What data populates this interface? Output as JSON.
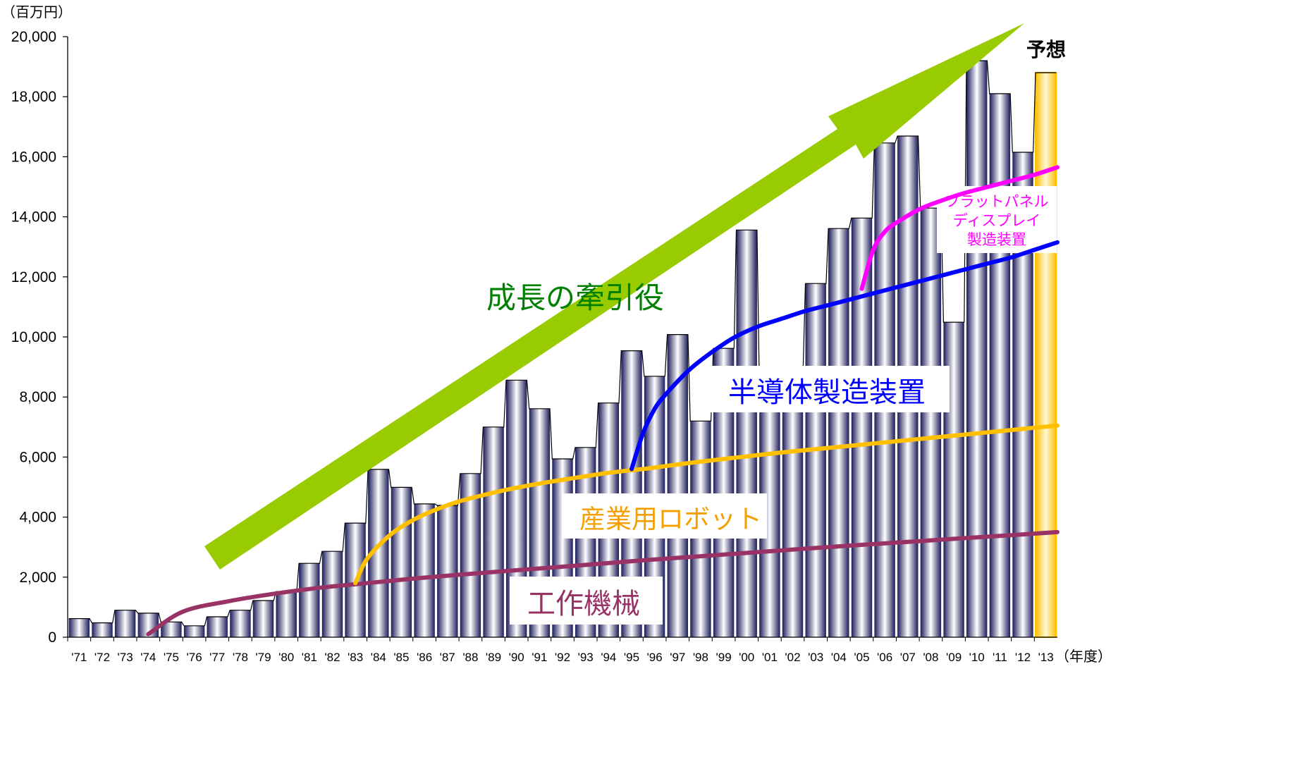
{
  "chart_data": {
    "type": "bar",
    "y_unit": "（百万円）",
    "x_unit": "（年度）",
    "ylim": [
      0,
      20000
    ],
    "y_ticks": [
      "0",
      "2,000",
      "4,000",
      "6,000",
      "8,000",
      "10,000",
      "12,000",
      "14,000",
      "16,000",
      "18,000",
      "20,000"
    ],
    "categories": [
      "'71",
      "'72",
      "'73",
      "'74",
      "'75",
      "'76",
      "'77",
      "'78",
      "'79",
      "'80",
      "'81",
      "'82",
      "'83",
      "'84",
      "'85",
      "'86",
      "'87",
      "'88",
      "'89",
      "'90",
      "'91",
      "'92",
      "'93",
      "'94",
      "'95",
      "'96",
      "'97",
      "'98",
      "'99",
      "'00",
      "'01",
      "'02",
      "'03",
      "'04",
      "'05",
      "'06",
      "'07",
      "'08",
      "'09",
      "'10",
      "'11",
      "'12",
      "'13"
    ],
    "values": [
      620,
      480,
      900,
      800,
      510,
      380,
      680,
      900,
      1220,
      1520,
      2460,
      2860,
      3800,
      5590,
      4990,
      4440,
      4390,
      5450,
      7000,
      8560,
      7610,
      5940,
      6320,
      7800,
      9540,
      8690,
      10080,
      7200,
      9620,
      13560,
      8400,
      8870,
      11780,
      13610,
      13960,
      16460,
      16690,
      14290,
      10490,
      19200,
      18100,
      16150,
      18800
    ],
    "forecast_label": "予想",
    "forecast_category": "'13",
    "trend_lines": [
      {
        "name": "工作機械",
        "color": "#993366",
        "x": [
          3.5,
          5,
          7,
          9,
          11,
          13,
          15,
          17,
          19,
          21,
          23,
          25,
          27,
          29,
          31,
          33,
          35,
          37,
          39,
          41,
          43
        ],
        "y": [
          100,
          850,
          1200,
          1450,
          1650,
          1800,
          1950,
          2080,
          2200,
          2320,
          2440,
          2560,
          2670,
          2780,
          2890,
          3000,
          3100,
          3200,
          3300,
          3400,
          3500
        ]
      },
      {
        "name": "産業用ロボット",
        "color": "#FFC000",
        "x": [
          12.5,
          13,
          14,
          15,
          16,
          17,
          18,
          19,
          20,
          21,
          22,
          23,
          24,
          25,
          27,
          29,
          31,
          33,
          35,
          37,
          39,
          41,
          43
        ],
        "y": [
          1800,
          2600,
          3400,
          3900,
          4250,
          4520,
          4720,
          4900,
          5050,
          5180,
          5300,
          5420,
          5520,
          5600,
          5800,
          5980,
          6150,
          6300,
          6450,
          6600,
          6750,
          6900,
          7050
        ]
      },
      {
        "name": "半導体製造装置",
        "color": "#0000FF",
        "x": [
          24.5,
          25,
          25.5,
          26,
          27,
          28,
          29,
          30,
          31,
          32,
          33,
          34,
          35,
          36,
          37,
          38,
          39,
          40,
          41,
          42,
          43
        ],
        "y": [
          5600,
          6800,
          7600,
          8100,
          8900,
          9500,
          10000,
          10350,
          10600,
          10850,
          11050,
          11250,
          11450,
          11650,
          11850,
          12050,
          12250,
          12450,
          12650,
          12900,
          13150
        ]
      },
      {
        "name": "フラットパネルディスプレイ製造装置",
        "color": "#FF00FF",
        "x": [
          34.5,
          35,
          35.5,
          36,
          37,
          38,
          39,
          40,
          41,
          42,
          43
        ],
        "y": [
          11600,
          12900,
          13500,
          13800,
          14250,
          14550,
          14800,
          15000,
          15200,
          15400,
          15650
        ]
      }
    ],
    "annotations": {
      "growth_arrow_label": "成長の牽引役",
      "semiconductor_label": "半導体製造装置",
      "robot_label": "産業用ロボット",
      "machine_tool_label": "工作機械",
      "fpd_label_lines": [
        "フラットパネル",
        "ディスプレイ",
        "製造装置"
      ]
    },
    "colors": {
      "bar_dark": "#1c1c5a",
      "bar_light": "#ffffff",
      "forecast_bar": "#ffc000",
      "arrow": "#99cc00",
      "arrow_text": "#008000"
    },
    "grid": false,
    "legend": "none"
  }
}
